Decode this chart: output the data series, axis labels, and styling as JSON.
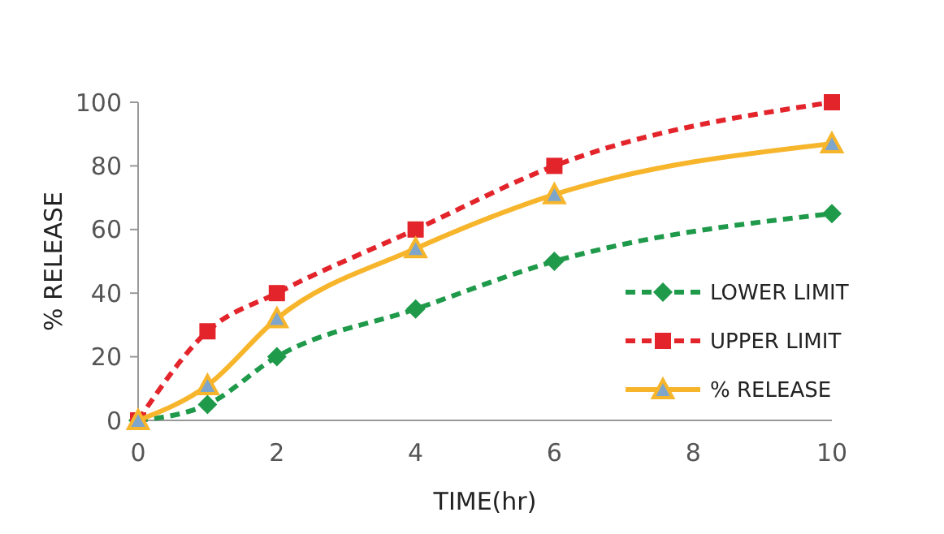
{
  "chart_data": {
    "type": "line",
    "xlabel": "TIME(hr)",
    "ylabel": "% RELEASE",
    "x": [
      0,
      1,
      2,
      4,
      6,
      10
    ],
    "series": [
      {
        "name": "LOWER LIMIT",
        "color": "#1f9a4a",
        "values": [
          0,
          5,
          20,
          35,
          50,
          65
        ],
        "marker": "diamond",
        "line_style": "dashed"
      },
      {
        "name": "UPPER LIMIT",
        "color": "#e3242b",
        "values": [
          0,
          28,
          40,
          60,
          80,
          100
        ],
        "marker": "square",
        "line_style": "dashed"
      },
      {
        "name": "% RELEASE",
        "color": "#f7b52c",
        "values": [
          0,
          11,
          32,
          54,
          71,
          87
        ],
        "marker": "triangle",
        "line_style": "solid"
      }
    ],
    "xlim": [
      0,
      10
    ],
    "xticks": [
      0,
      2,
      4,
      6,
      8,
      10
    ],
    "ylim": [
      0,
      100
    ],
    "yticks": [
      0,
      20,
      40,
      60,
      80,
      100
    ],
    "grid": false,
    "legend": "bottom right"
  }
}
